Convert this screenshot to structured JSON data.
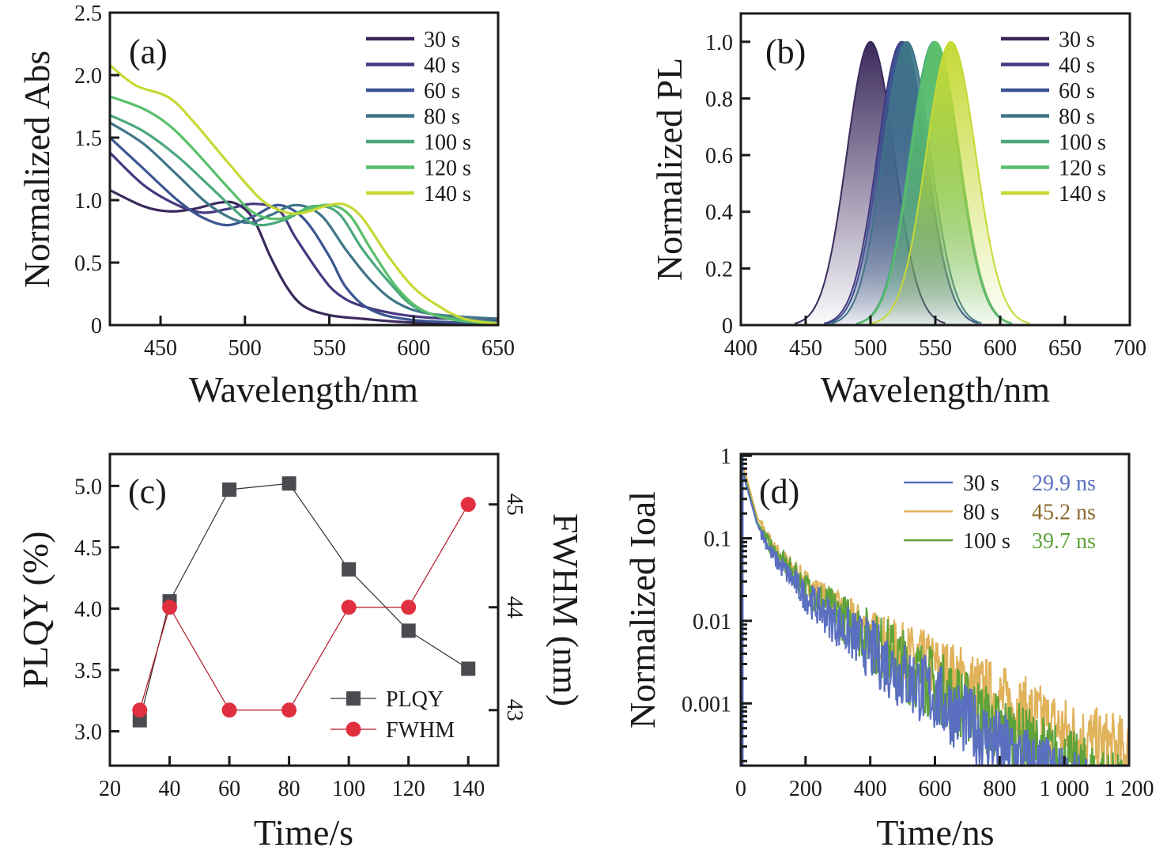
{
  "figure": {
    "panels": [
      "(a)",
      "(b)",
      "(c)",
      "(d)"
    ]
  },
  "chart_data": [
    {
      "panel": "(a)",
      "type": "line",
      "title": "",
      "xlabel": "Wavelength/nm",
      "ylabel": "Normalized Abs",
      "xlim": [
        420,
        650
      ],
      "ylim": [
        0,
        2.5
      ],
      "xticks": [
        450,
        500,
        550,
        600,
        650
      ],
      "yticks": [
        0,
        0.5,
        1.0,
        1.5,
        2.0,
        2.5
      ],
      "ytick_labels": [
        "0",
        "0.5",
        "1.0",
        "1.5",
        "2.0",
        "2.5"
      ],
      "legend_position": "top-right",
      "series": [
        {
          "name": "30 s",
          "color": "#3b2a5c",
          "x": [
            420,
            440,
            455,
            470,
            485,
            495,
            505,
            515,
            525,
            535,
            550,
            570,
            600,
            650
          ],
          "y": [
            1.08,
            0.95,
            0.91,
            0.93,
            0.98,
            0.97,
            0.85,
            0.55,
            0.3,
            0.15,
            0.08,
            0.05,
            0.02,
            0.01
          ]
        },
        {
          "name": "40 s",
          "color": "#433a80",
          "x": [
            420,
            440,
            460,
            475,
            490,
            505,
            520,
            530,
            545,
            555,
            570,
            600,
            650
          ],
          "y": [
            1.38,
            1.12,
            0.96,
            0.9,
            0.93,
            0.97,
            0.92,
            0.7,
            0.4,
            0.25,
            0.15,
            0.07,
            0.03
          ]
        },
        {
          "name": "60 s",
          "color": "#3b5592",
          "x": [
            420,
            440,
            460,
            475,
            490,
            505,
            520,
            535,
            550,
            560,
            575,
            600,
            650
          ],
          "y": [
            1.5,
            1.25,
            1.0,
            0.86,
            0.8,
            0.87,
            0.96,
            0.85,
            0.55,
            0.3,
            0.12,
            0.04,
            0.01
          ]
        },
        {
          "name": "80 s",
          "color": "#3f7588",
          "x": [
            420,
            440,
            460,
            480,
            500,
            515,
            530,
            545,
            560,
            575,
            590,
            610,
            650
          ],
          "y": [
            1.62,
            1.45,
            1.2,
            0.95,
            0.82,
            0.88,
            0.96,
            0.88,
            0.6,
            0.35,
            0.18,
            0.09,
            0.05
          ]
        },
        {
          "name": "100 s",
          "color": "#4aa87c",
          "x": [
            420,
            440,
            460,
            480,
            500,
            510,
            525,
            540,
            555,
            570,
            585,
            600,
            620,
            650
          ],
          "y": [
            1.68,
            1.55,
            1.35,
            1.1,
            0.85,
            0.8,
            0.85,
            0.95,
            0.9,
            0.6,
            0.35,
            0.15,
            0.06,
            0.02
          ]
        },
        {
          "name": "120 s",
          "color": "#5abf6a",
          "x": [
            420,
            440,
            455,
            470,
            490,
            505,
            520,
            535,
            550,
            562,
            575,
            590,
            605,
            625,
            650
          ],
          "y": [
            1.83,
            1.73,
            1.6,
            1.4,
            1.1,
            0.9,
            0.85,
            0.92,
            0.96,
            0.88,
            0.6,
            0.3,
            0.12,
            0.04,
            0.01
          ]
        },
        {
          "name": "140 s",
          "color": "#c6d935",
          "x": [
            420,
            435,
            455,
            470,
            490,
            510,
            525,
            535,
            550,
            560,
            570,
            585,
            600,
            615,
            630,
            650
          ],
          "y": [
            2.08,
            1.92,
            1.82,
            1.62,
            1.3,
            1.0,
            0.9,
            0.9,
            0.96,
            0.96,
            0.85,
            0.55,
            0.3,
            0.15,
            0.05,
            0.01
          ]
        }
      ]
    },
    {
      "panel": "(b)",
      "type": "area",
      "title": "",
      "xlabel": "Wavelength/nm",
      "ylabel": "Normalized PL",
      "xlim": [
        400,
        700
      ],
      "ylim": [
        0,
        1.1
      ],
      "xticks": [
        400,
        450,
        500,
        550,
        600,
        650,
        700
      ],
      "yticks": [
        0,
        0.2,
        0.4,
        0.6,
        0.8,
        1.0
      ],
      "ytick_labels": [
        "0",
        "0.2",
        "0.4",
        "0.6",
        "0.8",
        "1.0"
      ],
      "legend_position": "top-right",
      "series": [
        {
          "name": "30 s",
          "color": "#3b2a5c",
          "peak_nm": 500,
          "fwhm_nm": 43
        },
        {
          "name": "40 s",
          "color": "#433a80",
          "peak_nm": 524,
          "fwhm_nm": 44
        },
        {
          "name": "60 s",
          "color": "#3b5592",
          "peak_nm": 525,
          "fwhm_nm": 43
        },
        {
          "name": "80 s",
          "color": "#3f7588",
          "peak_nm": 528,
          "fwhm_nm": 43
        },
        {
          "name": "100 s",
          "color": "#4aa87c",
          "peak_nm": 549,
          "fwhm_nm": 44
        },
        {
          "name": "120 s",
          "color": "#5abf6a",
          "peak_nm": 550,
          "fwhm_nm": 44
        },
        {
          "name": "140 s",
          "color": "#c6d935",
          "peak_nm": 562,
          "fwhm_nm": 45
        }
      ]
    },
    {
      "panel": "(c)",
      "type": "line",
      "title": "",
      "xlabel": "Time/s",
      "ylabel": "PLQY (%)",
      "ylabel_right": "FWHM (nm)",
      "xlim": [
        20,
        150
      ],
      "ylim": [
        2.72,
        5.26
      ],
      "ylim_right": [
        42.46,
        45.49
      ],
      "xticks": [
        20,
        40,
        60,
        80,
        100,
        120,
        140
      ],
      "yticks": [
        3.0,
        3.5,
        4.0,
        4.5,
        5.0
      ],
      "ytick_labels": [
        "3.0",
        "3.5",
        "4.0",
        "4.5",
        "5.0"
      ],
      "yticks_right": [
        43,
        44,
        45
      ],
      "legend_position": "bottom-right",
      "categories": [
        30,
        40,
        60,
        80,
        100,
        120,
        140
      ],
      "series": [
        {
          "name": "PLQY",
          "axis": "left",
          "marker": "square",
          "color": "#4a4a50",
          "values": [
            3.09,
            4.06,
            4.97,
            5.02,
            4.32,
            3.82,
            3.51
          ]
        },
        {
          "name": "FWHM",
          "axis": "right",
          "marker": "circle",
          "color": "#e0303f",
          "values": [
            43,
            44,
            43,
            43,
            44,
            44,
            45
          ]
        }
      ]
    },
    {
      "panel": "(d)",
      "type": "line",
      "title": "",
      "xlabel": "Time/ns",
      "ylabel": "Normalized Ioal",
      "xlim": [
        0,
        1200
      ],
      "ylim": [
        0.000176,
        1.05
      ],
      "yscale": "log",
      "xticks": [
        0,
        200,
        400,
        600,
        800,
        1000,
        1200
      ],
      "xtick_labels": [
        "0",
        "200",
        "400",
        "600",
        "800",
        "1 000",
        "1 200"
      ],
      "yticks": [
        1,
        0.1,
        0.01,
        0.001
      ],
      "ytick_labels": [
        "1",
        "0.1",
        "0.01",
        "0.001"
      ],
      "legend_position": "top-right",
      "series": [
        {
          "name": "30 s",
          "lifetime": "29.9 ns",
          "color": "#5a6fc0",
          "label_color": "#5a6fc0",
          "x": [
            10,
            50,
            100,
            200,
            300,
            400,
            500,
            600,
            700,
            800,
            900
          ],
          "y": [
            0.55,
            0.15,
            0.06,
            0.02,
            0.009,
            0.0045,
            0.0022,
            0.0012,
            0.0006,
            0.0003,
            0.00018
          ]
        },
        {
          "name": "80 s",
          "lifetime": "45.2 ns",
          "color": "#e0b25a",
          "label_color": "#8b6a2e",
          "x": [
            10,
            50,
            100,
            200,
            300,
            400,
            500,
            600,
            700,
            800,
            900,
            1000,
            1100,
            1200
          ],
          "y": [
            0.7,
            0.18,
            0.08,
            0.03,
            0.014,
            0.0075,
            0.0045,
            0.0028,
            0.0017,
            0.0011,
            0.0007,
            0.00045,
            0.00032,
            0.00025
          ]
        },
        {
          "name": "100 s",
          "lifetime": "39.7 ns",
          "color": "#5ea33a",
          "label_color": "#5ea33a",
          "x": [
            10,
            50,
            100,
            200,
            300,
            400,
            500,
            600,
            700,
            800,
            900,
            1000
          ],
          "y": [
            0.6,
            0.16,
            0.07,
            0.025,
            0.012,
            0.006,
            0.003,
            0.0017,
            0.0009,
            0.0005,
            0.0003,
            0.00019
          ]
        }
      ]
    }
  ]
}
